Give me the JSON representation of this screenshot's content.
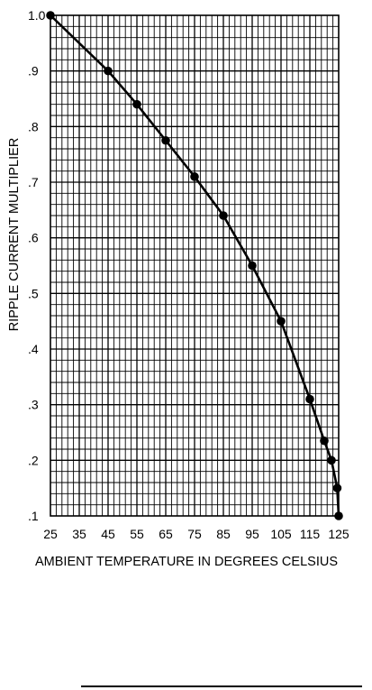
{
  "chart_data": {
    "type": "line",
    "xlabel": "AMBIENT TEMPERATURE IN DEGREES CELSIUS",
    "ylabel": "RIPPLE CURRENT MULTIPLIER",
    "xlim": [
      25,
      125
    ],
    "ylim": [
      0.1,
      1.0
    ],
    "x_ticks": [
      25,
      35,
      45,
      55,
      65,
      75,
      85,
      95,
      105,
      115,
      125
    ],
    "x_tick_labels": [
      "25",
      "35",
      "45",
      "55",
      "65",
      "75",
      "85",
      "95",
      "105",
      "115",
      "125"
    ],
    "y_ticks": [
      0.1,
      0.2,
      0.3,
      0.4,
      0.5,
      0.6,
      0.7,
      0.8,
      0.9,
      1.0
    ],
    "y_tick_labels": [
      ".1",
      ".2",
      ".3",
      ".4",
      ".5",
      ".6",
      ".7",
      ".8",
      ".9",
      "1.0"
    ],
    "grid": true,
    "series": [
      {
        "x": [
          25,
          45,
          55,
          65,
          75,
          85,
          95,
          105,
          115,
          120,
          122.5,
          124.5,
          125
        ],
        "y": [
          1.0,
          0.9,
          0.84,
          0.775,
          0.71,
          0.64,
          0.55,
          0.45,
          0.31,
          0.235,
          0.2,
          0.15,
          0.1
        ]
      }
    ],
    "colors": {
      "line": "#000000",
      "grid": "#000000",
      "marker": "#000000"
    }
  }
}
